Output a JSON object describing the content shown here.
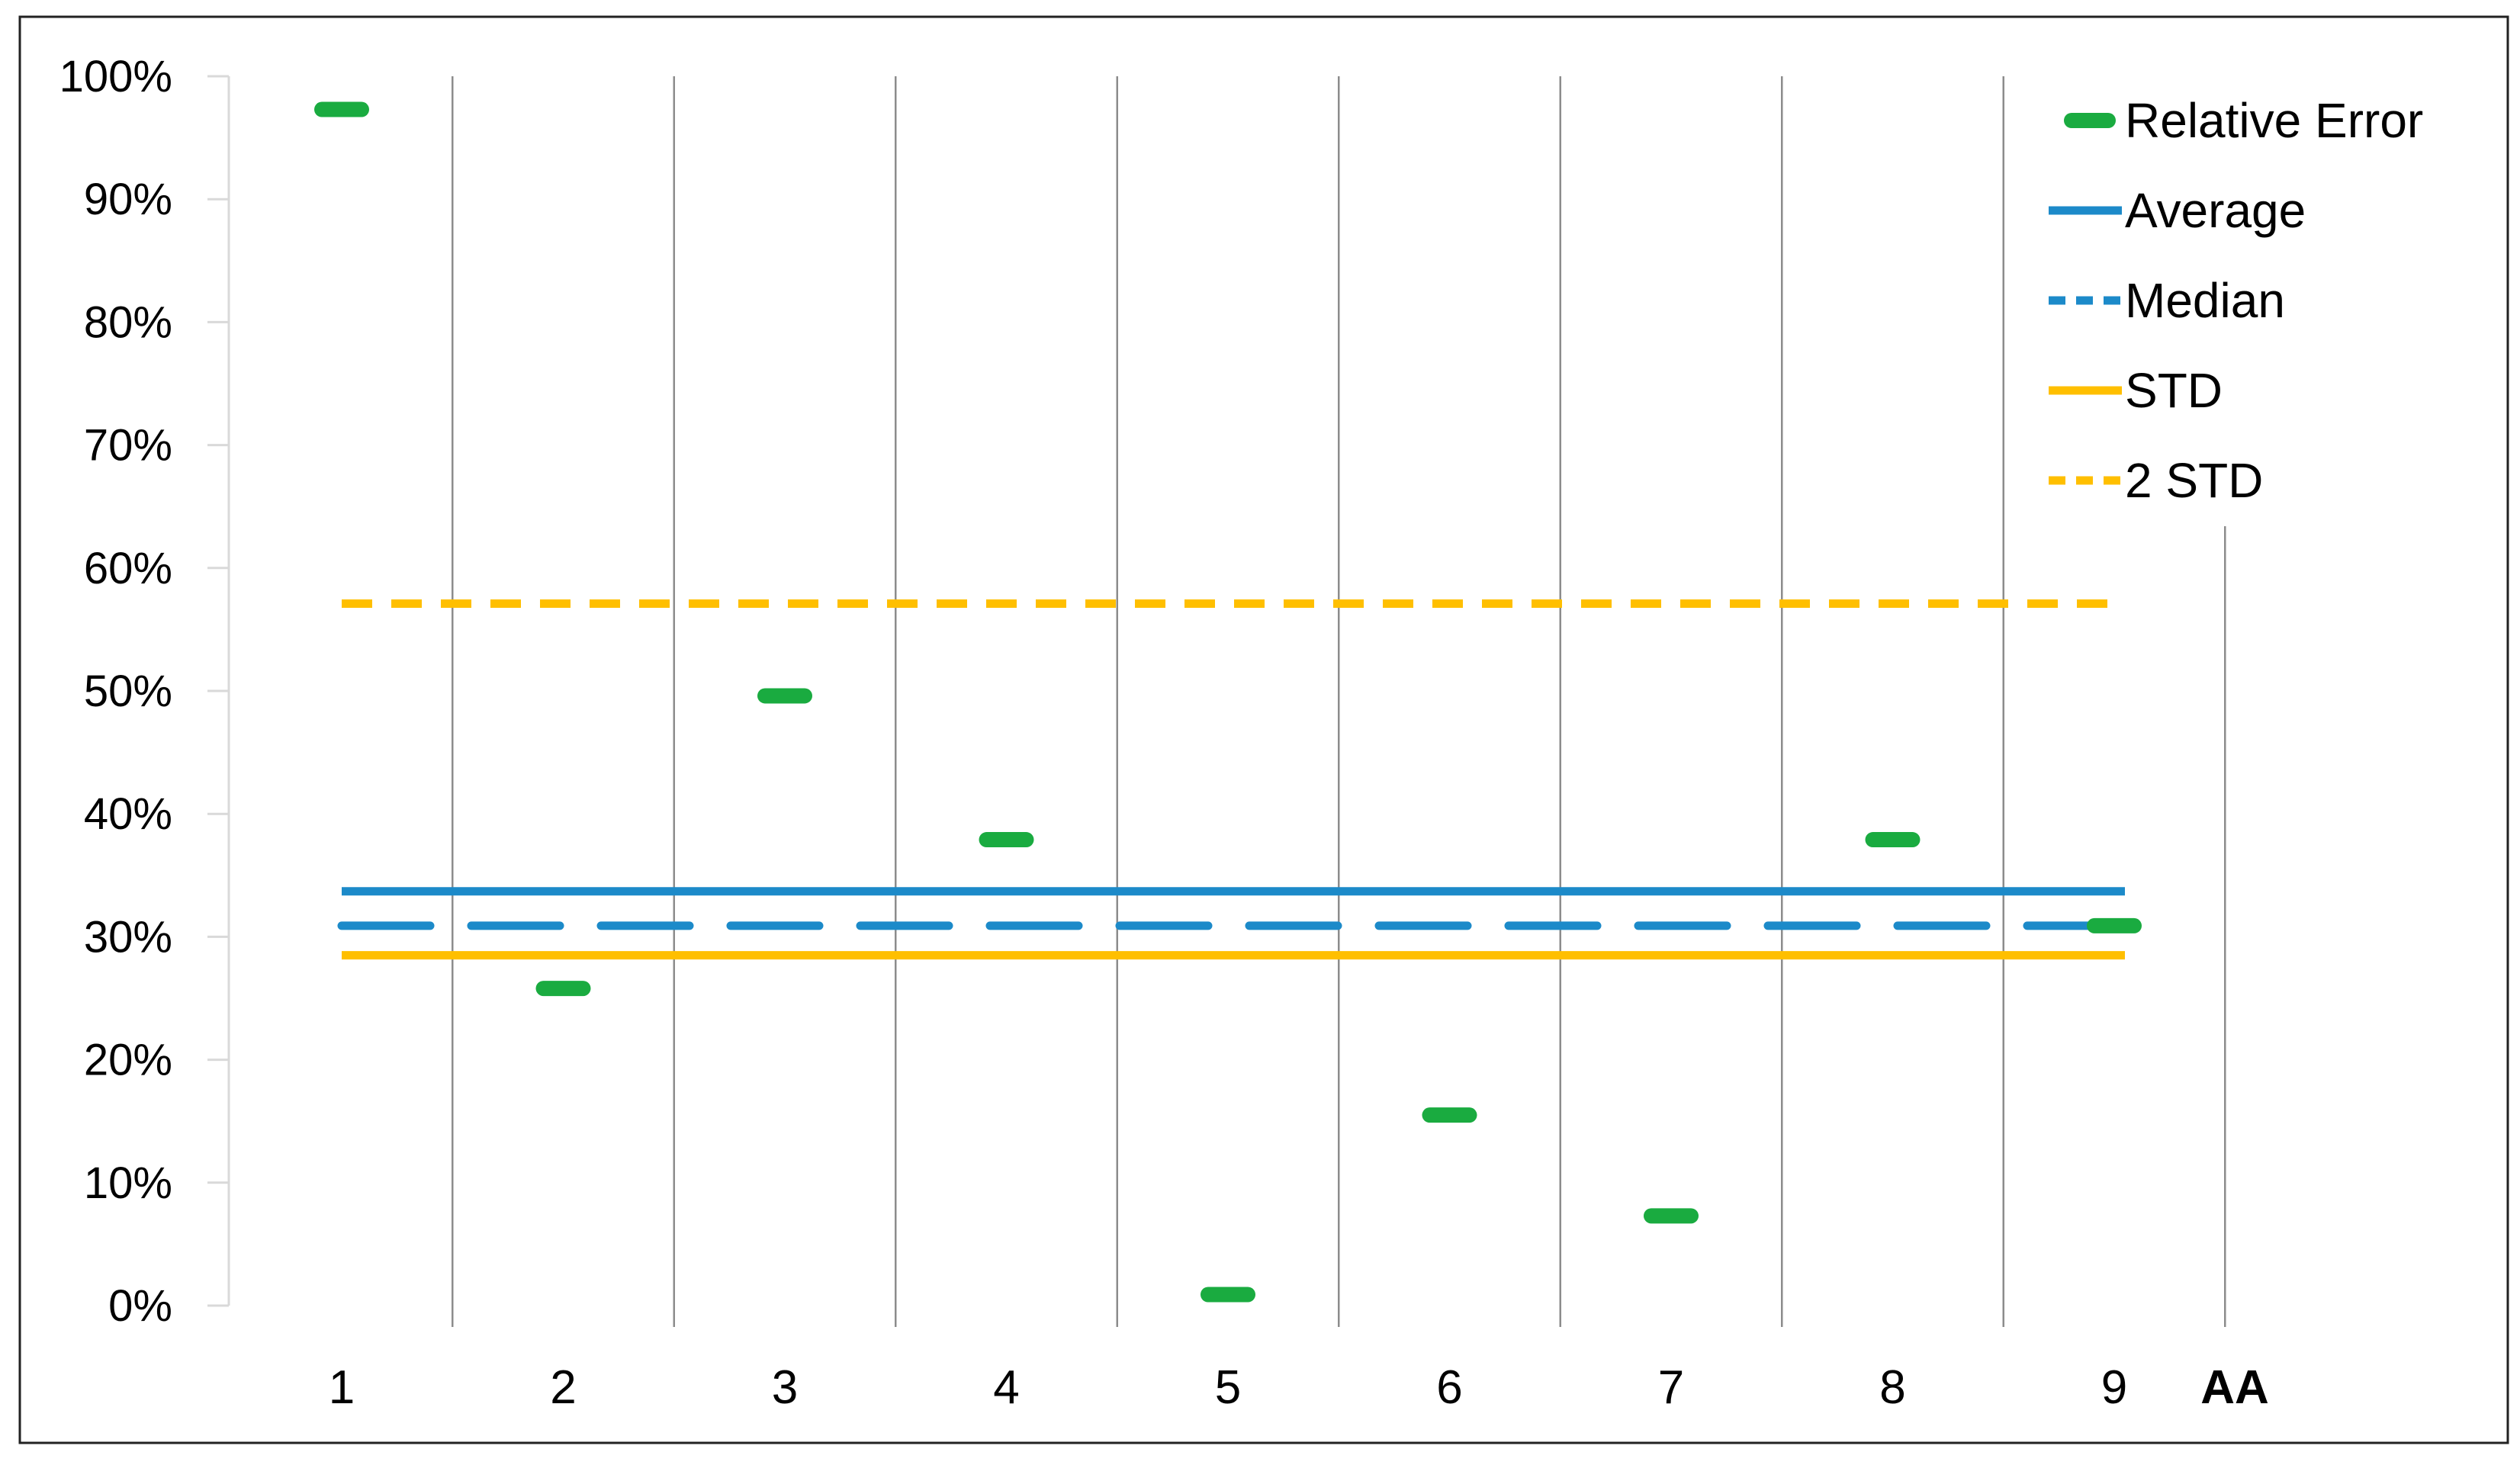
{
  "chart_data": {
    "type": "line",
    "title": "",
    "xlabel": "",
    "ylabel": "",
    "y_unit": "%",
    "ylim": [
      0,
      100
    ],
    "y_ticks": [
      "0%",
      "10%",
      "20%",
      "30%",
      "40%",
      "50%",
      "60%",
      "70%",
      "80%",
      "90%",
      "100%"
    ],
    "x_tick_labels": [
      "1",
      "2",
      "3",
      "4",
      "5",
      "6",
      "7",
      "8",
      "9",
      "AA"
    ],
    "grid": {
      "vertical": true,
      "horizontal": false
    },
    "legend_position": "top-right",
    "series": [
      {
        "name": "Relative Error",
        "style": "marker-dash",
        "color": "#1aab40",
        "x": [
          "1",
          "2",
          "3",
          "4",
          "5",
          "6",
          "7",
          "8",
          "9"
        ],
        "values": [
          97.3,
          25.8,
          49.6,
          37.9,
          0.9,
          15.5,
          7.3,
          37.9,
          30.9
        ]
      },
      {
        "name": "Average",
        "style": "solid",
        "color": "#1c8ac9",
        "values": [
          33.7,
          33.7,
          33.7,
          33.7,
          33.7,
          33.7,
          33.7,
          33.7,
          33.7
        ]
      },
      {
        "name": "Median",
        "style": "dashed",
        "color": "#1c8ac9",
        "values": [
          30.9,
          30.9,
          30.9,
          30.9,
          30.9,
          30.9,
          30.9,
          30.9,
          30.9
        ]
      },
      {
        "name": "STD",
        "style": "solid",
        "color": "#ffbf00",
        "values": [
          28.5,
          28.5,
          28.5,
          28.5,
          28.5,
          28.5,
          28.5,
          28.5,
          28.5
        ]
      },
      {
        "name": "2 STD",
        "style": "dashed",
        "color": "#ffbf00",
        "values": [
          57.1,
          57.1,
          57.1,
          57.1,
          57.1,
          57.1,
          57.1,
          57.1,
          57.1
        ]
      }
    ]
  }
}
